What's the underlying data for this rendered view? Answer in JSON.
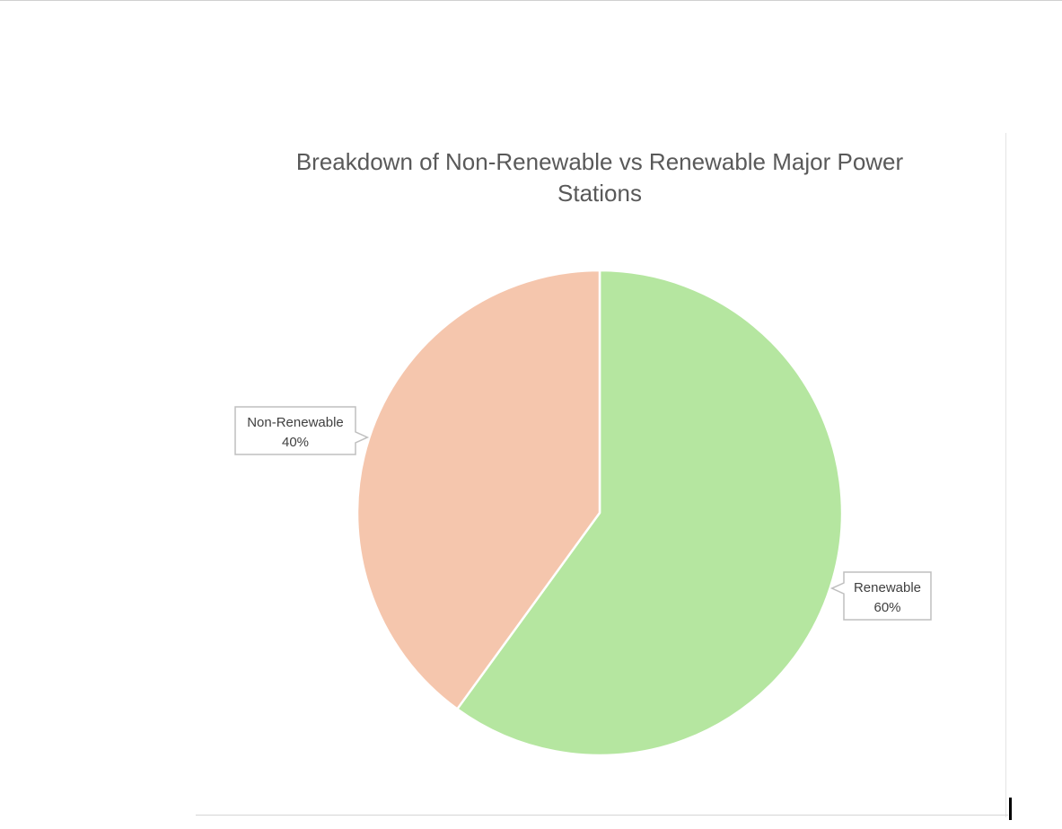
{
  "chart_data": {
    "type": "pie",
    "title_lines": [
      "Breakdown of Non-Renewable vs Renewable Major Power",
      "Stations"
    ],
    "slices": [
      {
        "label": "Renewable",
        "value": 60,
        "value_text": "60%",
        "color": "#b5e6a0"
      },
      {
        "label": "Non-Renewable",
        "value": 40,
        "value_text": "40%",
        "color": "#f5c6ad"
      }
    ],
    "start_angle": "12 o'clock",
    "direction": "clockwise",
    "legend": "none",
    "data_labels": "callouts"
  }
}
